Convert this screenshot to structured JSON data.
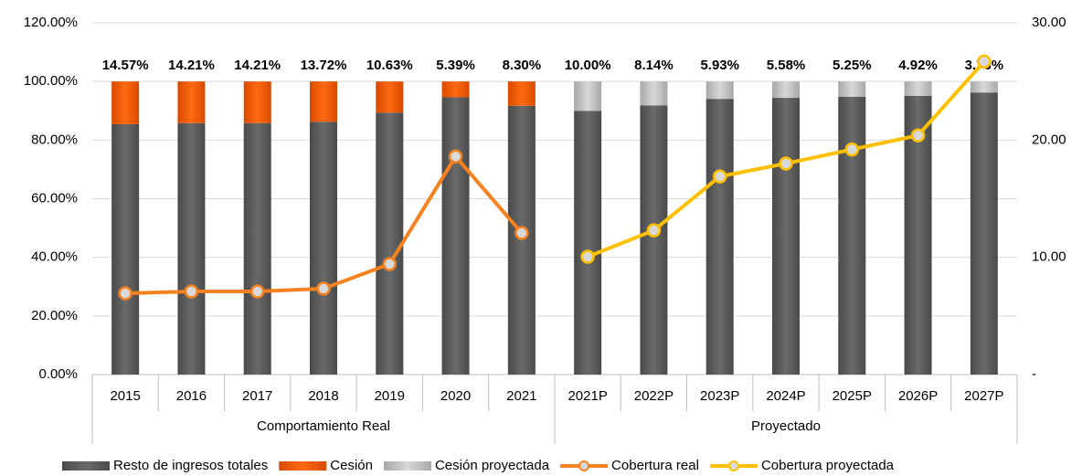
{
  "chart_data": {
    "type": "bar",
    "categories": [
      "2015",
      "2016",
      "2017",
      "2018",
      "2019",
      "2020",
      "2021",
      "2021P",
      "2022P",
      "2023P",
      "2024P",
      "2025P",
      "2026P",
      "2027P"
    ],
    "category_groups": [
      "Comportamiento Real",
      "Comportamiento Real",
      "Comportamiento Real",
      "Comportamiento Real",
      "Comportamiento Real",
      "Comportamiento Real",
      "Comportamiento Real",
      "Proyectado",
      "Proyectado",
      "Proyectado",
      "Proyectado",
      "Proyectado",
      "Proyectado",
      "Proyectado"
    ],
    "stacked": true,
    "series": [
      {
        "name": "Resto de ingresos totales",
        "type": "bar",
        "color": "#5c5c5c",
        "values": [
          85.43,
          85.79,
          85.79,
          86.28,
          89.37,
          94.61,
          91.7,
          90.0,
          91.86,
          94.07,
          94.42,
          94.75,
          95.08,
          96.24
        ]
      },
      {
        "name": "Cesión",
        "type": "bar",
        "color": "#f05a00",
        "values": [
          14.57,
          14.21,
          14.21,
          13.72,
          10.63,
          5.39,
          8.3,
          null,
          null,
          null,
          null,
          null,
          null,
          null
        ],
        "value_labels": [
          "14.57%",
          "14.21%",
          "14.21%",
          "13.72%",
          "10.63%",
          "5.39%",
          "8.30%",
          null,
          null,
          null,
          null,
          null,
          null,
          null
        ]
      },
      {
        "name": "Cesión proyectada",
        "type": "bar",
        "color": "#c4c4c4",
        "values": [
          null,
          null,
          null,
          null,
          null,
          null,
          null,
          10.0,
          8.14,
          5.93,
          5.58,
          5.25,
          4.92,
          3.76
        ],
        "value_labels": [
          null,
          null,
          null,
          null,
          null,
          null,
          null,
          "10.00%",
          "8.14%",
          "5.93%",
          "5.58%",
          "5.25%",
          "4.92%",
          "3.76%"
        ]
      },
      {
        "name": "Cobertura real",
        "type": "line",
        "axis": "y2",
        "color": "#f5821f",
        "values": [
          6.93,
          7.09,
          7.09,
          7.33,
          9.43,
          18.6,
          12.08,
          null,
          null,
          null,
          null,
          null,
          null,
          null
        ]
      },
      {
        "name": "Cobertura proyectada",
        "type": "line",
        "axis": "y2",
        "color": "#ffc000",
        "values": [
          null,
          null,
          null,
          null,
          null,
          null,
          null,
          10.05,
          12.3,
          16.9,
          18.0,
          19.2,
          20.4,
          26.7
        ]
      }
    ],
    "ylim": [
      0,
      120
    ],
    "yticks": [
      {
        "value": 0,
        "label": "0.00%"
      },
      {
        "value": 20,
        "label": "20.00%"
      },
      {
        "value": 40,
        "label": "40.00%"
      },
      {
        "value": 60,
        "label": "60.00%"
      },
      {
        "value": 80,
        "label": "80.00%"
      },
      {
        "value": 100,
        "label": "100.00%"
      },
      {
        "value": 120,
        "label": "120.00%"
      }
    ],
    "y2lim": [
      0,
      30
    ],
    "y2ticks": [
      {
        "value": 0,
        "label": "-"
      },
      {
        "value": 10,
        "label": "10.00"
      },
      {
        "value": 20,
        "label": "20.00"
      },
      {
        "value": 30,
        "label": "30.00"
      }
    ],
    "grid": true,
    "legend": "bottom"
  }
}
